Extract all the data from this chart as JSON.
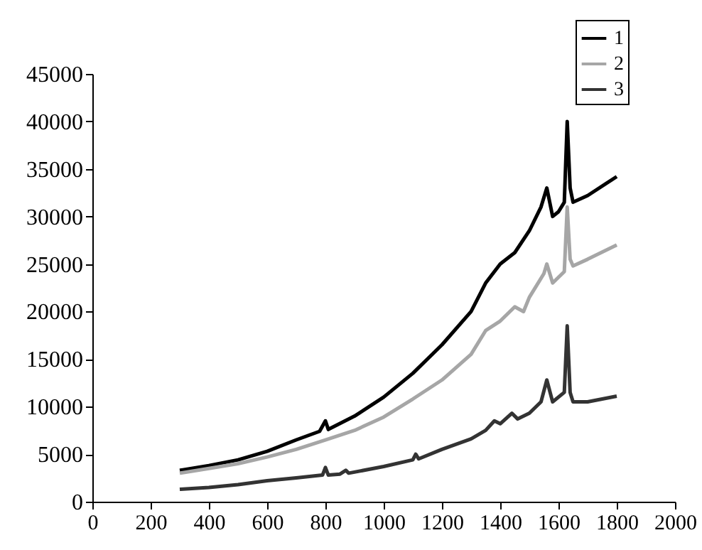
{
  "chart_data": {
    "type": "line",
    "xlim": [
      0,
      2000
    ],
    "xticks": [
      0,
      200,
      400,
      600,
      800,
      1000,
      1200,
      1400,
      1600,
      1800,
      2000
    ],
    "ylim": [
      0,
      45000
    ],
    "yticks": [
      0,
      5000,
      10000,
      15000,
      20000,
      25000,
      30000,
      35000,
      40000,
      45000
    ],
    "grid": false,
    "legend": "top right",
    "series": [
      {
        "name": "1",
        "color": "#000000",
        "x": [
          300,
          400,
          500,
          600,
          700,
          780,
          800,
          810,
          900,
          1000,
          1100,
          1200,
          1300,
          1350,
          1400,
          1450,
          1500,
          1540,
          1560,
          1580,
          1600,
          1620,
          1630,
          1640,
          1650,
          1700,
          1800
        ],
        "values": [
          3300,
          3800,
          4400,
          5300,
          6500,
          7400,
          8500,
          7600,
          9000,
          11000,
          13500,
          16500,
          20000,
          23000,
          25000,
          26200,
          28500,
          31000,
          33000,
          30000,
          30500,
          31500,
          40000,
          33000,
          31500,
          32200,
          34200
        ]
      },
      {
        "name": "2",
        "color": "#a6a6a6",
        "x": [
          300,
          400,
          500,
          600,
          700,
          800,
          900,
          1000,
          1100,
          1200,
          1300,
          1350,
          1400,
          1450,
          1480,
          1500,
          1550,
          1560,
          1580,
          1620,
          1630,
          1640,
          1650,
          1700,
          1800
        ],
        "values": [
          3000,
          3500,
          4000,
          4700,
          5500,
          6500,
          7500,
          8900,
          10800,
          12800,
          15500,
          18000,
          19000,
          20500,
          20000,
          21500,
          24000,
          25000,
          23000,
          24200,
          31000,
          25500,
          24800,
          25500,
          27000
        ]
      },
      {
        "name": "3",
        "color": "#333333",
        "x": [
          300,
          400,
          500,
          600,
          700,
          790,
          800,
          810,
          850,
          870,
          880,
          1000,
          1100,
          1110,
          1120,
          1200,
          1300,
          1350,
          1380,
          1400,
          1440,
          1460,
          1500,
          1540,
          1560,
          1580,
          1620,
          1630,
          1640,
          1650,
          1700,
          1800
        ],
        "values": [
          1300,
          1500,
          1800,
          2200,
          2500,
          2800,
          3600,
          2800,
          2900,
          3300,
          3000,
          3700,
          4400,
          5000,
          4500,
          5500,
          6600,
          7500,
          8500,
          8200,
          9300,
          8700,
          9300,
          10500,
          12800,
          10500,
          11500,
          18500,
          11500,
          10500,
          10500,
          11100
        ]
      }
    ]
  }
}
